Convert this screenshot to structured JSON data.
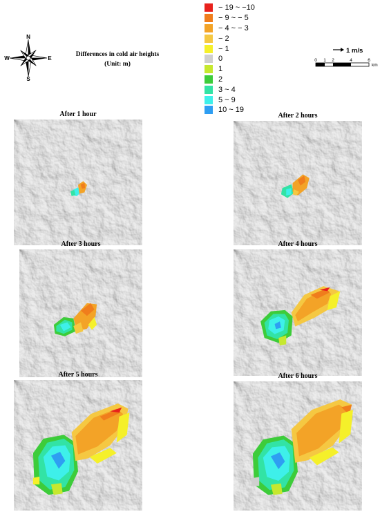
{
  "header": {
    "title_line1": "Differences in cold air heights",
    "title_line2": "(Unit: m)",
    "compass": {
      "n": "N",
      "s": "S",
      "e": "E",
      "w": "W"
    },
    "vector_label": "1 m/s",
    "scale_ticks": [
      "0",
      "1",
      "2",
      "4",
      "6"
    ],
    "scale_unit": "km"
  },
  "legend": [
    {
      "label": "− 19 ~ −10",
      "color": "#e8211c"
    },
    {
      "label": "− 9 ~ − 5",
      "color": "#f07d1c"
    },
    {
      "label": "− 4 ~ − 3",
      "color": "#f3a327"
    },
    {
      "label": "− 2",
      "color": "#f5c842"
    },
    {
      "label": "− 1",
      "color": "#f5f02a"
    },
    {
      "label": "0",
      "color": "#cfcfcf"
    },
    {
      "label": "1",
      "color": "#c6e82e"
    },
    {
      "label": "2",
      "color": "#3dcc3a"
    },
    {
      "label": "3 ~ 4",
      "color": "#32e3a5"
    },
    {
      "label": "5 ~ 9",
      "color": "#3ef0ea"
    },
    {
      "label": "10 ~ 19",
      "color": "#2e9ef2"
    }
  ],
  "panels": [
    {
      "title": "After 1 hour"
    },
    {
      "title": "After 2 hours"
    },
    {
      "title": "After 3 hours"
    },
    {
      "title": "After 4 hours"
    },
    {
      "title": "After 5 hours"
    },
    {
      "title": "After 6 hours"
    }
  ]
}
